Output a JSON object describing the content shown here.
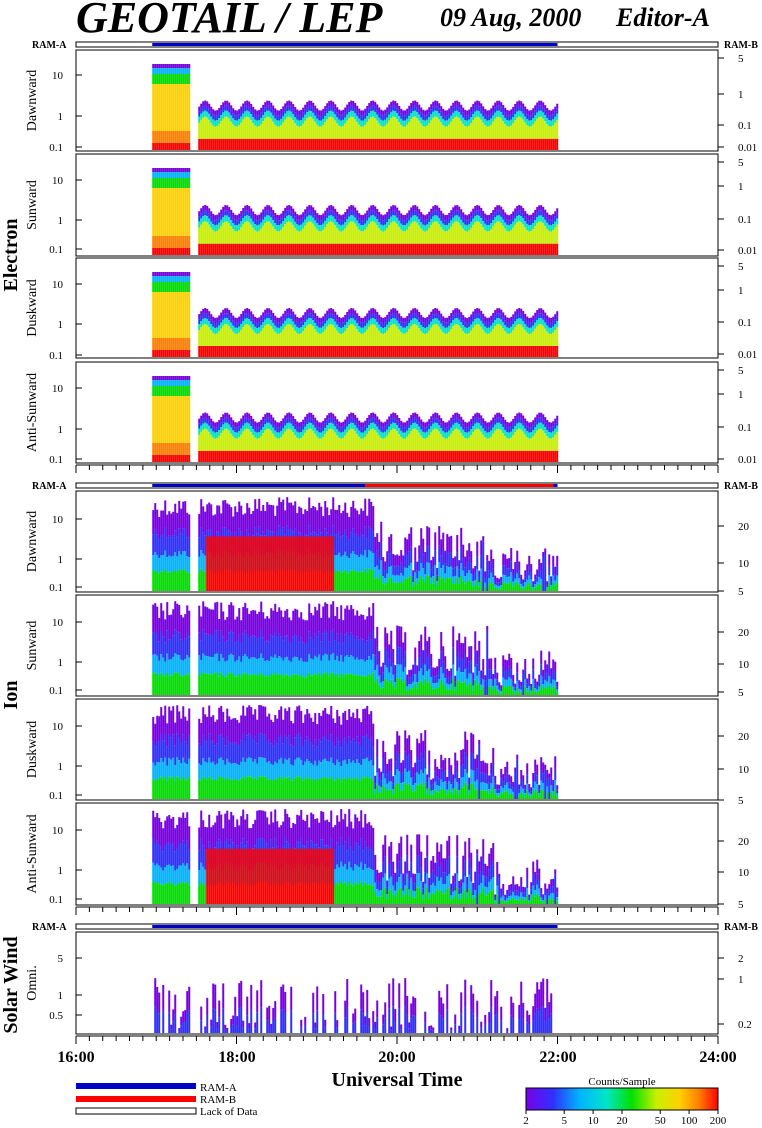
{
  "header": {
    "title": "GEOTAIL / LEP",
    "date": "09 Aug, 2000",
    "editor": "Editor-A"
  },
  "ram": {
    "a": "RAM-A",
    "b": "RAM-B"
  },
  "groups": {
    "electron": "Electron",
    "ion": "Ion",
    "solar_wind": "Solar Wind"
  },
  "xaxis": {
    "label": "Universal Time",
    "ticks": [
      "16:00",
      "18:00",
      "20:00",
      "22:00",
      "24:00"
    ]
  },
  "legend": {
    "ram_a": "RAM-A",
    "ram_b": "RAM-B",
    "lack": "Lack of Data"
  },
  "colorbar": {
    "title": "Counts/Sample",
    "ticks": [
      "2",
      "5",
      "10",
      "20",
      "50",
      "100",
      "200"
    ]
  },
  "chart_data": {
    "type": "heatmap",
    "x_range_hours": [
      16,
      24
    ],
    "data_coverage_hours": [
      16.95,
      22.0
    ],
    "colorbar_range": [
      2,
      200
    ],
    "colorbar_colors": [
      "#7a00e6",
      "#3030ff",
      "#00b4ff",
      "#00e6c8",
      "#00e000",
      "#c8f000",
      "#ffd000",
      "#ff8000",
      "#ff0000"
    ],
    "panels": [
      {
        "group": "Electron",
        "label": "Dawnward",
        "y_ticks": [
          "10",
          "1",
          "0.1"
        ],
        "right_ticks": [
          "5",
          "1",
          "0.1",
          "0.01"
        ]
      },
      {
        "group": "Electron",
        "label": "Sunward",
        "y_ticks": [
          "10",
          "1",
          "0.1"
        ],
        "right_ticks": [
          "5",
          "1",
          "0.1",
          "0.01"
        ]
      },
      {
        "group": "Electron",
        "label": "Duskward",
        "y_ticks": [
          "10",
          "1",
          "0.1"
        ],
        "right_ticks": [
          "5",
          "1",
          "0.1",
          "0.01"
        ]
      },
      {
        "group": "Electron",
        "label": "Anti-Sunward",
        "y_ticks": [
          "10",
          "1",
          "0.1"
        ],
        "right_ticks": [
          "5",
          "1",
          "0.1",
          "0.01"
        ]
      },
      {
        "group": "Ion",
        "label": "Dawnward",
        "y_ticks": [
          "10",
          "1",
          "0.1"
        ],
        "right_ticks": [
          "20",
          "10",
          "5"
        ]
      },
      {
        "group": "Ion",
        "label": "Sunward",
        "y_ticks": [
          "10",
          "1",
          "0.1"
        ],
        "right_ticks": [
          "20",
          "10",
          "5"
        ]
      },
      {
        "group": "Ion",
        "label": "Duskward",
        "y_ticks": [
          "10",
          "1",
          "0.1"
        ],
        "right_ticks": [
          "20",
          "10",
          "5"
        ]
      },
      {
        "group": "Ion",
        "label": "Anti-Sunward",
        "y_ticks": [
          "10",
          "1",
          "0.1"
        ],
        "right_ticks": [
          "20",
          "10",
          "5"
        ]
      },
      {
        "group": "Solar Wind",
        "label": "Omni.",
        "y_ticks": [
          "5",
          "1",
          "0.5"
        ],
        "right_ticks": [
          "2",
          "1",
          "0.2"
        ]
      }
    ]
  }
}
